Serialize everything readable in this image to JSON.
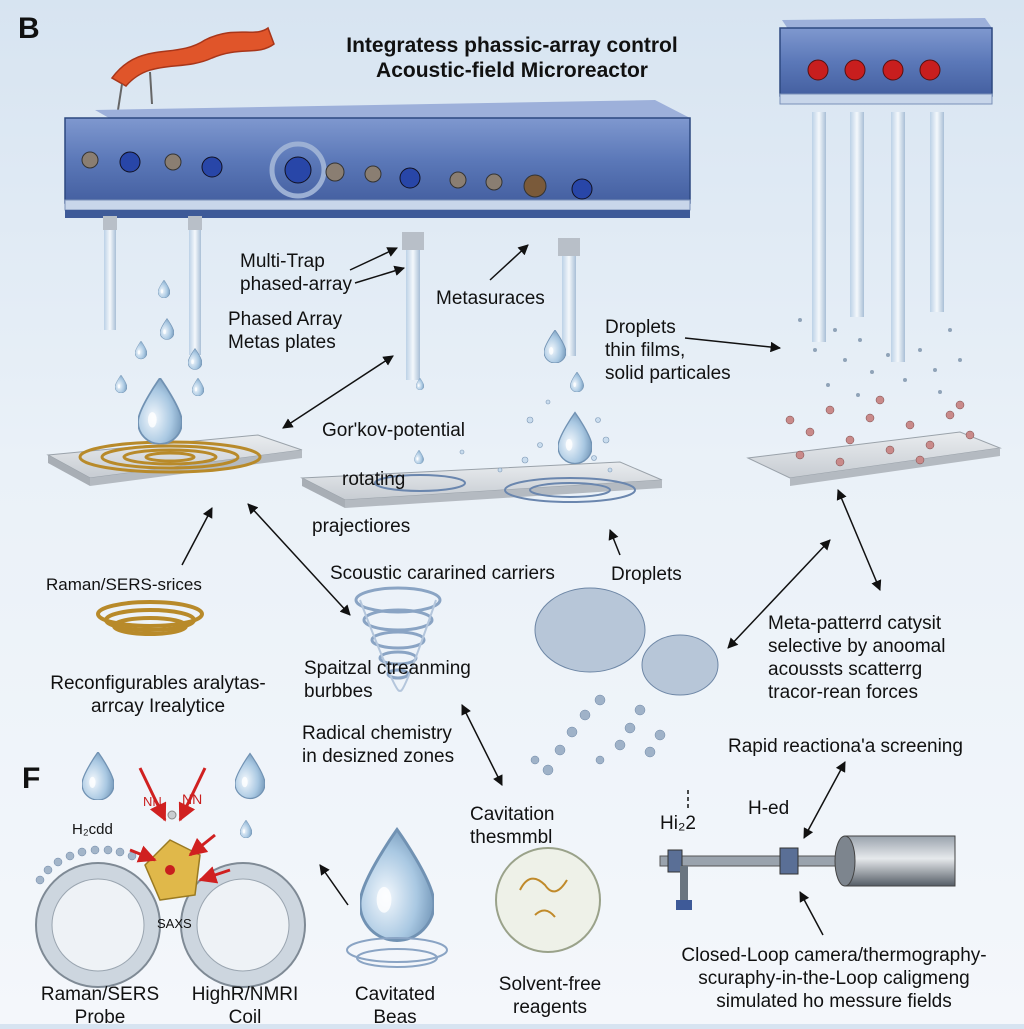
{
  "panels": {
    "b": "B",
    "f": "F"
  },
  "title": {
    "line1": "Integratess phassic-array control",
    "line2": "Acoustic-field Microreactor"
  },
  "labels": {
    "multi_trap": [
      "Multi-Trap",
      "phased-array"
    ],
    "phased_array": [
      "Phased Array",
      "Metas plates"
    ],
    "metasurfaces": "Metasuraces",
    "droplets_films": [
      "Droplets",
      "thin films,",
      "solid particales"
    ],
    "gorkov": "Gor'kov-potential",
    "rotating": "rotating",
    "trajectories": "prajectiores",
    "raman_sers_devices": "Raman/SERS-srices",
    "acoustic_carriers": "Scoustic cararined carriers",
    "droplets": "Droplets",
    "reconfigurable": [
      "Reconfigurables aralytas-",
      "arrcay Irealytice"
    ],
    "meta_patterned": [
      "Meta-patterrd catysit",
      "selective by anoomal",
      "acoussts scatterrg",
      "tracor-rean forces"
    ],
    "spatial_streaming": [
      "Spaitzal ctreanming",
      "burbbes"
    ],
    "radical_chemistry": [
      "Radical chemistry",
      "in desizned zones"
    ],
    "rapid_screening": "Rapid reactiona'a screening",
    "h2_cold": "H₂cdd",
    "cavitation": [
      "Cavitation",
      "thesmmbl"
    ],
    "h2": "Hi₂2",
    "h_ed": "H-ed",
    "saxs": "SAXS",
    "nn": [
      "NN",
      "NN"
    ],
    "raman_probe": [
      "Raman/SERS",
      "Probe"
    ],
    "high_nmr": [
      "HighR/NMRI",
      "Coil"
    ],
    "cavitated_beas": [
      "Cavitated",
      "Beas"
    ],
    "solvent_free": [
      "Solvent-free",
      "reagents"
    ],
    "closed_loop": [
      "Closed-Loop camera/thermography-",
      "scuraphy-in-the-Loop caligmeng",
      "simulated ho messure fields"
    ]
  },
  "colors": {
    "housing": "#5b78b8",
    "housing_dark": "#3e5a98",
    "knob_blue": "#2846a8",
    "led_red": "#c81e1e",
    "ring_gold": "#b88a2a",
    "droplet": "#a9c8e2",
    "arrow_red": "#d02020",
    "ribbon_orange": "#e0552a"
  }
}
